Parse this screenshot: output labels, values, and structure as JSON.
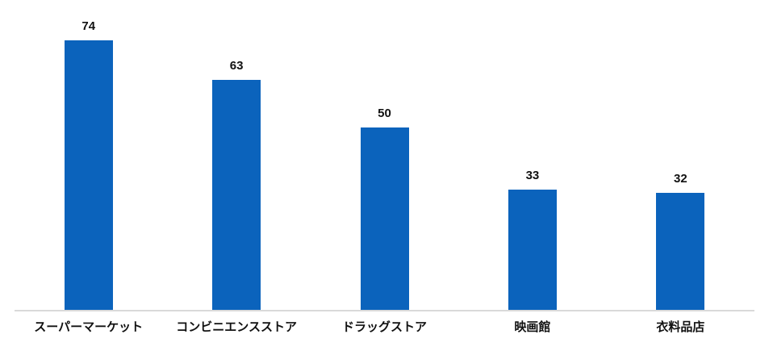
{
  "chart_data": {
    "type": "bar",
    "categories": [
      "スーパーマーケット",
      "コンビニエンスストア",
      "ドラッグストア",
      "映画館",
      "衣料品店"
    ],
    "values": [
      74,
      63,
      50,
      33,
      32
    ],
    "data_labels": [
      74,
      63,
      50,
      33,
      32
    ],
    "title": "",
    "xlabel": "",
    "ylabel": "",
    "ylim": [
      0,
      85
    ],
    "grid": false,
    "legend": false,
    "y_axis_visible": false,
    "x_axis_line_visible": true,
    "colors": {
      "bar": "#0B63BC",
      "axis_line": "#D9D9D9",
      "label_text": "#111111"
    }
  }
}
